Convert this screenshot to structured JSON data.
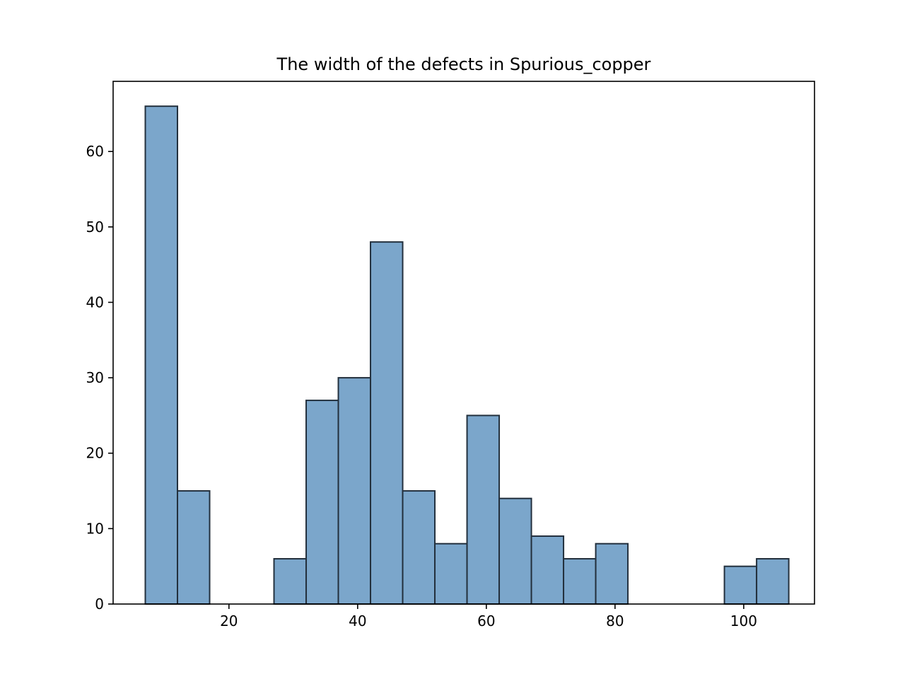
{
  "chart_data": {
    "type": "bar",
    "title": "The width of the defects in Spurious_copper",
    "xlabel": "",
    "ylabel": "",
    "bin_width": 5,
    "bins": [
      {
        "start": 7,
        "end": 12,
        "count": 66
      },
      {
        "start": 12,
        "end": 17,
        "count": 15
      },
      {
        "start": 17,
        "end": 22,
        "count": 0
      },
      {
        "start": 22,
        "end": 27,
        "count": 0
      },
      {
        "start": 27,
        "end": 32,
        "count": 6
      },
      {
        "start": 32,
        "end": 37,
        "count": 27
      },
      {
        "start": 37,
        "end": 42,
        "count": 30
      },
      {
        "start": 42,
        "end": 47,
        "count": 48
      },
      {
        "start": 47,
        "end": 52,
        "count": 15
      },
      {
        "start": 52,
        "end": 57,
        "count": 8
      },
      {
        "start": 57,
        "end": 62,
        "count": 25
      },
      {
        "start": 62,
        "end": 67,
        "count": 14
      },
      {
        "start": 67,
        "end": 72,
        "count": 9
      },
      {
        "start": 72,
        "end": 77,
        "count": 6
      },
      {
        "start": 77,
        "end": 82,
        "count": 8
      },
      {
        "start": 82,
        "end": 87,
        "count": 0
      },
      {
        "start": 87,
        "end": 92,
        "count": 0
      },
      {
        "start": 92,
        "end": 97,
        "count": 0
      },
      {
        "start": 97,
        "end": 102,
        "count": 5
      },
      {
        "start": 102,
        "end": 107,
        "count": 6
      }
    ],
    "xlim": [
      2,
      111
    ],
    "ylim": [
      0,
      69.3
    ],
    "xticks": [
      20,
      40,
      60,
      80,
      100
    ],
    "yticks": [
      0,
      10,
      20,
      30,
      40,
      50,
      60
    ],
    "bar_color": "#7ba6cb",
    "edge_color": "#23303d",
    "grid": false
  }
}
